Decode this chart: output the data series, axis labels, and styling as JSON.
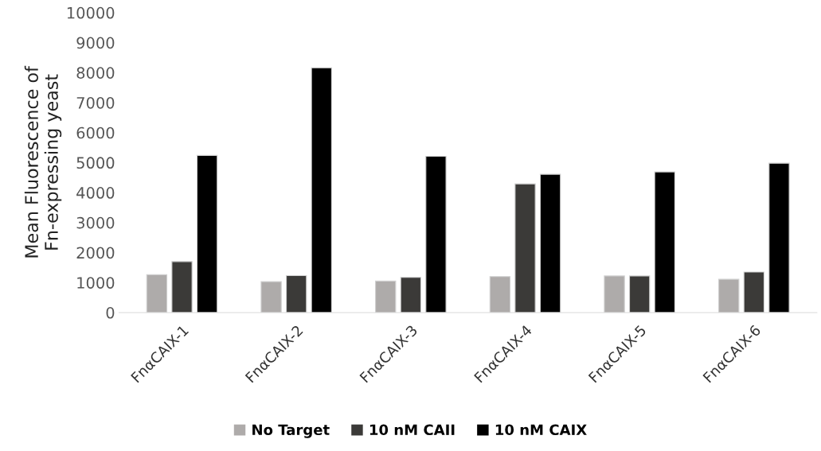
{
  "chart_data": {
    "type": "bar",
    "ylabel": "Mean Fluorescence of\nFn-expressing yeast",
    "categories": [
      "FnαCAIX-1",
      "FnαCAIX-2",
      "FnαCAIX-3",
      "FnαCAIX-4",
      "FnαCAIX-5",
      "FnαCAIX-6"
    ],
    "series": [
      {
        "name": "No Target",
        "color": "#aeabaa",
        "values": [
          1260,
          1030,
          1050,
          1200,
          1220,
          1110
        ]
      },
      {
        "name": "10 nM CAII",
        "color": "#3b3a38",
        "values": [
          1700,
          1230,
          1170,
          4290,
          1220,
          1350
        ]
      },
      {
        "name": "10 nM CAIX",
        "color": "#000000",
        "values": [
          5240,
          8160,
          5210,
          4610,
          4690,
          4980
        ]
      }
    ],
    "ylim": [
      0,
      10000
    ],
    "yticks": [
      0,
      1000,
      2000,
      3000,
      4000,
      5000,
      6000,
      7000,
      8000,
      9000,
      10000
    ],
    "grid": false,
    "legend": "bottom"
  }
}
